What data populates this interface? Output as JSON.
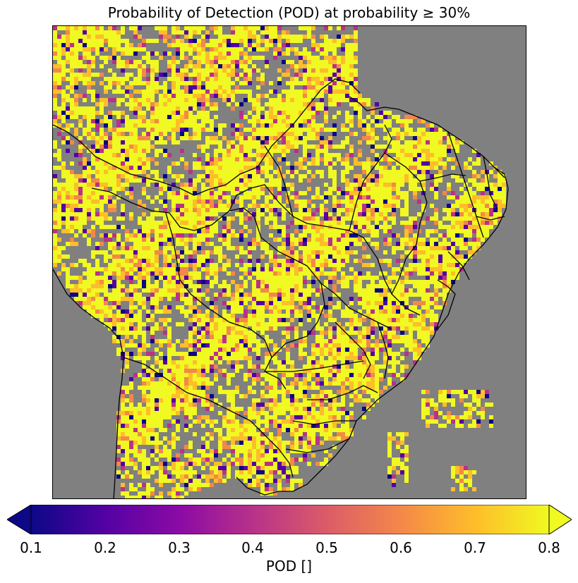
{
  "title": "Probability of Detection (POD) at probability ≥ 30%",
  "map": {
    "background_color": "#808080",
    "border_color": "#000000",
    "no_data_meaning": "gray"
  },
  "colorbar": {
    "label": "POD []",
    "colormap": "plasma",
    "min": 0.1,
    "max": 0.8,
    "extend": "both",
    "ticks": [
      "0.1",
      "0.2",
      "0.3",
      "0.4",
      "0.5",
      "0.6",
      "0.7",
      "0.8"
    ],
    "stops": [
      "#0d0887",
      "#5302a3",
      "#8b0aa5",
      "#b83289",
      "#db5c68",
      "#f48849",
      "#febd2a",
      "#f0f921"
    ]
  }
}
